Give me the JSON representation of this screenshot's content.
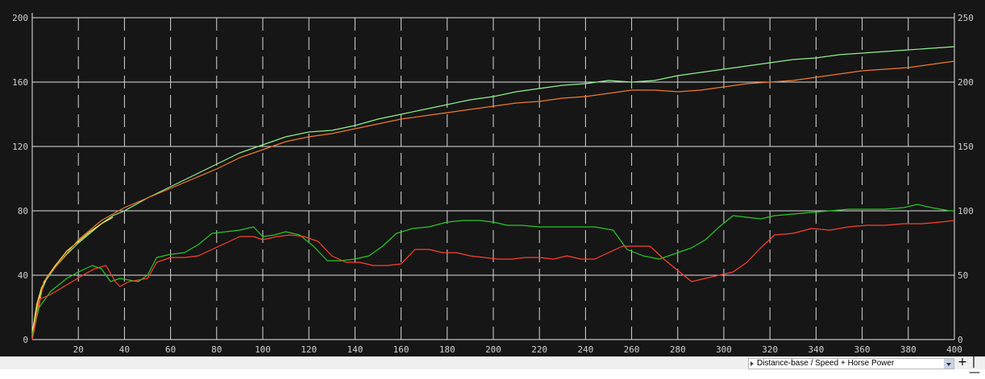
{
  "chart_data": {
    "type": "line",
    "title": "",
    "xlabel": "",
    "ylabel": "",
    "xlim": [
      0,
      400
    ],
    "ylim": [
      0,
      200
    ],
    "y2lim": [
      0,
      250
    ],
    "grid": true,
    "x_ticks": [
      "20",
      "40",
      "60",
      "80",
      "100",
      "120",
      "140",
      "160",
      "180",
      "200",
      "220",
      "240",
      "260",
      "280",
      "300",
      "320",
      "340",
      "360",
      "380",
      "400"
    ],
    "y_ticks": [
      "0",
      "40",
      "80",
      "120",
      "160",
      "200"
    ],
    "y2_ticks": [
      "0",
      "50",
      "100",
      "150",
      "200",
      "250"
    ],
    "series": [
      {
        "color": "#8ef08e",
        "axis": "left",
        "width": 1.2,
        "x": [
          0,
          2,
          4,
          6,
          10,
          15,
          20,
          25,
          30,
          35,
          40,
          50,
          60,
          70,
          80,
          90,
          100,
          110,
          120,
          130,
          140,
          150,
          160,
          170,
          180,
          190,
          200,
          210,
          220,
          230,
          240,
          250,
          260,
          270,
          280,
          290,
          300,
          310,
          320,
          330,
          340,
          350,
          360,
          370,
          380,
          390,
          400
        ],
        "y": [
          3,
          20,
          30,
          37,
          45,
          53,
          60,
          66,
          72,
          77,
          80,
          88,
          95,
          102,
          109,
          116,
          121,
          126,
          129,
          130,
          133,
          137,
          140,
          143,
          146,
          149,
          151,
          154,
          156,
          158,
          159,
          161,
          160,
          161,
          164,
          166,
          168,
          170,
          172,
          174,
          175,
          177,
          178,
          179,
          180,
          181,
          182
        ]
      },
      {
        "color": "#ffe94a",
        "axis": "left",
        "width": 1.2,
        "x": [
          0,
          2,
          4,
          6,
          10,
          15,
          20,
          25,
          30,
          35
        ],
        "y": [
          4,
          22,
          32,
          38,
          46,
          55,
          61,
          67,
          72,
          76
        ]
      },
      {
        "color": "#f07a2c",
        "axis": "left",
        "width": 1.2,
        "x": [
          0,
          5,
          10,
          20,
          30,
          40,
          50,
          60,
          70,
          80,
          90,
          100,
          110,
          120,
          130,
          140,
          150,
          160,
          170,
          180,
          190,
          200,
          210,
          220,
          230,
          240,
          250,
          260,
          270,
          280,
          290,
          300,
          310,
          320,
          330,
          340,
          350,
          360,
          370,
          380,
          390,
          400
        ],
        "y": [
          0,
          36,
          45,
          62,
          74,
          82,
          88,
          94,
          100,
          106,
          113,
          118,
          123,
          126,
          128,
          131,
          134,
          137,
          139,
          141,
          143,
          145,
          147,
          148,
          150,
          151,
          153,
          155,
          155,
          154,
          155,
          157,
          159,
          160,
          161,
          163,
          165,
          167,
          168,
          169,
          171,
          173
        ]
      },
      {
        "color": "#28c828",
        "axis": "left",
        "width": 1.2,
        "x": [
          0,
          3,
          8,
          15,
          20,
          26,
          30,
          34,
          38,
          42,
          46,
          50,
          54,
          60,
          66,
          72,
          78,
          84,
          90,
          96,
          100,
          105,
          110,
          116,
          122,
          128,
          134,
          140,
          146,
          152,
          158,
          165,
          172,
          180,
          187,
          194,
          200,
          206,
          212,
          220,
          228,
          236,
          244,
          252,
          258,
          265,
          272,
          280,
          286,
          292,
          298,
          304,
          310,
          316,
          322,
          330,
          338,
          346,
          354,
          362,
          370,
          378,
          384,
          390,
          398,
          400
        ],
        "y": [
          3,
          20,
          30,
          38,
          42,
          46,
          44,
          36,
          38,
          37,
          36,
          40,
          51,
          53,
          54,
          59,
          66,
          67,
          68,
          70,
          64,
          65,
          67,
          65,
          58,
          49,
          49,
          50,
          52,
          58,
          66,
          69,
          70,
          73,
          74,
          74,
          73,
          71,
          71,
          70,
          70,
          70,
          70,
          68,
          56,
          52,
          50,
          54,
          57,
          62,
          70,
          77,
          76,
          75,
          77,
          78,
          79,
          80,
          81,
          81,
          81,
          82,
          84,
          82,
          80,
          80
        ]
      },
      {
        "color": "#ff4030",
        "axis": "left",
        "width": 1.2,
        "x": [
          0,
          3,
          8,
          15,
          22,
          27,
          32,
          36,
          38,
          42,
          46,
          50,
          54,
          60,
          66,
          72,
          78,
          84,
          90,
          96,
          100,
          106,
          112,
          118,
          124,
          130,
          136,
          142,
          148,
          154,
          160,
          166,
          172,
          178,
          184,
          190,
          196,
          202,
          208,
          214,
          220,
          226,
          232,
          238,
          244,
          250,
          256,
          262,
          268,
          274,
          280,
          286,
          292,
          298,
          304,
          310,
          316,
          322,
          330,
          338,
          346,
          354,
          362,
          370,
          378,
          386,
          394,
          400
        ],
        "y": [
          0,
          25,
          28,
          34,
          40,
          44,
          46,
          36,
          33,
          36,
          37,
          38,
          48,
          51,
          51,
          52,
          56,
          60,
          64,
          64,
          62,
          64,
          65,
          64,
          61,
          52,
          48,
          48,
          46,
          46,
          47,
          56,
          56,
          54,
          54,
          52,
          51,
          50,
          50,
          51,
          51,
          50,
          52,
          50,
          50,
          54,
          58,
          58,
          58,
          50,
          43,
          36,
          38,
          40,
          42,
          48,
          57,
          65,
          66,
          69,
          68,
          70,
          71,
          71,
          72,
          72,
          73,
          74
        ]
      }
    ],
    "control": {
      "label": "Distance-base / Speed + Horse Power",
      "zoom_in": "+",
      "zoom_out": "|—"
    }
  }
}
